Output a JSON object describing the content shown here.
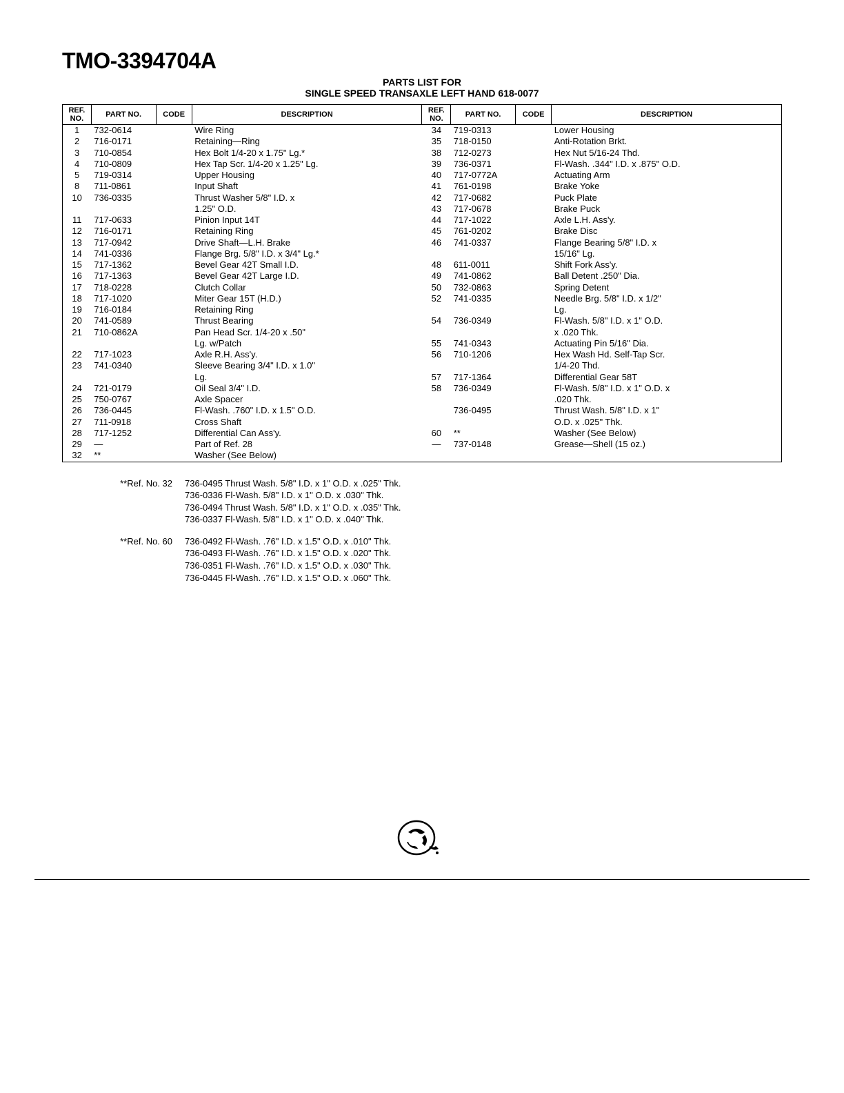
{
  "model": "TMO-3394704A",
  "subtitle_line1": "PARTS LIST FOR",
  "subtitle_line2": "SINGLE SPEED TRANSAXLE LEFT HAND 618-0077",
  "headers": {
    "ref": "REF.\nNO.",
    "part": "PART\nNO.",
    "code": "CODE",
    "desc": "DESCRIPTION"
  },
  "rows_left": [
    {
      "ref": "1",
      "part": "732-0614",
      "desc": "Wire Ring"
    },
    {
      "ref": "2",
      "part": "716-0171",
      "desc": "Retaining—Ring"
    },
    {
      "ref": "3",
      "part": "710-0854",
      "desc": "Hex Bolt 1/4-20 x 1.75\" Lg.*"
    },
    {
      "ref": "4",
      "part": "710-0809",
      "desc": "Hex Tap Scr. 1/4-20 x 1.25\" Lg."
    },
    {
      "ref": "5",
      "part": "719-0314",
      "desc": "Upper Housing"
    },
    {
      "ref": "8",
      "part": "711-0861",
      "desc": "Input Shaft"
    },
    {
      "ref": "10",
      "part": "736-0335",
      "desc": "Thrust Washer 5/8\" I.D. x"
    },
    {
      "ref": "",
      "part": "",
      "desc": "1.25\" O.D."
    },
    {
      "ref": "11",
      "part": "717-0633",
      "desc": "Pinion Input 14T"
    },
    {
      "ref": "12",
      "part": "716-0171",
      "desc": "Retaining Ring"
    },
    {
      "ref": "13",
      "part": "717-0942",
      "desc": "Drive Shaft—L.H. Brake"
    },
    {
      "ref": "14",
      "part": "741-0336",
      "desc": "Flange Brg. 5/8\" I.D. x 3/4\" Lg.*"
    },
    {
      "ref": "15",
      "part": "717-1362",
      "desc": "Bevel Gear 42T Small I.D."
    },
    {
      "ref": "16",
      "part": "717-1363",
      "desc": "Bevel Gear 42T Large I.D."
    },
    {
      "ref": "17",
      "part": "718-0228",
      "desc": "Clutch Collar"
    },
    {
      "ref": "18",
      "part": "717-1020",
      "desc": "Miter Gear 15T (H.D.)"
    },
    {
      "ref": "19",
      "part": "716-0184",
      "desc": "Retaining Ring"
    },
    {
      "ref": "20",
      "part": "741-0589",
      "desc": "Thrust Bearing"
    },
    {
      "ref": "21",
      "part": "710-0862A",
      "desc": "Pan Head Scr. 1/4-20 x .50\""
    },
    {
      "ref": "",
      "part": "",
      "desc": "Lg. w/Patch"
    },
    {
      "ref": "22",
      "part": "717-1023",
      "desc": "Axle R.H. Ass'y."
    },
    {
      "ref": "23",
      "part": "741-0340",
      "desc": "Sleeve Bearing 3/4\" I.D. x 1.0\""
    },
    {
      "ref": "",
      "part": "",
      "desc": "Lg."
    },
    {
      "ref": "24",
      "part": "721-0179",
      "desc": "Oil Seal 3/4\" I.D."
    },
    {
      "ref": "25",
      "part": "750-0767",
      "desc": "Axle Spacer"
    },
    {
      "ref": "26",
      "part": "736-0445",
      "desc": "Fl-Wash. .760\" I.D. x 1.5\" O.D."
    },
    {
      "ref": "27",
      "part": "711-0918",
      "desc": "Cross Shaft"
    },
    {
      "ref": "28",
      "part": "717-1252",
      "desc": "Differential Can Ass'y."
    },
    {
      "ref": "29",
      "part": "—",
      "desc": "Part of Ref. 28"
    },
    {
      "ref": "32",
      "part": "**",
      "desc": "Washer (See Below)"
    }
  ],
  "rows_right": [
    {
      "ref": "34",
      "part": "719-0313",
      "desc": "Lower Housing"
    },
    {
      "ref": "35",
      "part": "718-0150",
      "desc": "Anti-Rotation Brkt."
    },
    {
      "ref": "38",
      "part": "712-0273",
      "desc": "Hex Nut 5/16-24 Thd."
    },
    {
      "ref": "39",
      "part": "736-0371",
      "desc": "Fl-Wash. .344\" I.D. x .875\" O.D."
    },
    {
      "ref": "40",
      "part": "717-0772A",
      "desc": "Actuating Arm"
    },
    {
      "ref": "41",
      "part": "761-0198",
      "desc": "Brake Yoke"
    },
    {
      "ref": "42",
      "part": "717-0682",
      "desc": "Puck Plate"
    },
    {
      "ref": "43",
      "part": "717-0678",
      "desc": "Brake Puck"
    },
    {
      "ref": "44",
      "part": "717-1022",
      "desc": "Axle L.H. Ass'y."
    },
    {
      "ref": "45",
      "part": "761-0202",
      "desc": "Brake Disc"
    },
    {
      "ref": "46",
      "part": "741-0337",
      "desc": "Flange Bearing 5/8\" I.D. x"
    },
    {
      "ref": "",
      "part": "",
      "desc": "15/16\" Lg."
    },
    {
      "ref": "48",
      "part": "611-0011",
      "desc": "Shift Fork Ass'y."
    },
    {
      "ref": "49",
      "part": "741-0862",
      "desc": "Ball Detent .250\" Dia."
    },
    {
      "ref": "50",
      "part": "732-0863",
      "desc": "Spring Detent"
    },
    {
      "ref": "52",
      "part": "741-0335",
      "desc": "Needle Brg. 5/8\" I.D. x 1/2\""
    },
    {
      "ref": "",
      "part": "",
      "desc": "Lg."
    },
    {
      "ref": "54",
      "part": "736-0349",
      "desc": "Fl-Wash. 5/8\" I.D. x 1\" O.D."
    },
    {
      "ref": "",
      "part": "",
      "desc": "x .020 Thk."
    },
    {
      "ref": "55",
      "part": "741-0343",
      "desc": "Actuating Pin 5/16\" Dia."
    },
    {
      "ref": "56",
      "part": "710-1206",
      "desc": "Hex Wash Hd. Self-Tap Scr."
    },
    {
      "ref": "",
      "part": "",
      "desc": "1/4-20 Thd."
    },
    {
      "ref": "57",
      "part": "717-1364",
      "desc": "Differential Gear 58T"
    },
    {
      "ref": "58",
      "part": "736-0349",
      "desc": "Fl-Wash. 5/8\" I.D. x 1\" O.D. x"
    },
    {
      "ref": "",
      "part": "",
      "desc": ".020 Thk."
    },
    {
      "ref": "",
      "part": "736-0495",
      "desc": "Thrust Wash. 5/8\" I.D. x 1\""
    },
    {
      "ref": "",
      "part": "",
      "desc": "O.D. x .025\" Thk."
    },
    {
      "ref": "60",
      "part": "**",
      "desc": "Washer (See Below)"
    },
    {
      "ref": "—",
      "part": "737-0148",
      "desc": "Grease—Shell (15 oz.)"
    },
    {
      "ref": "",
      "part": "",
      "desc": ""
    }
  ],
  "footnotes": [
    {
      "label": "**Ref. No. 32",
      "lines": [
        "736-0495 Thrust Wash. 5/8\" I.D. x 1\" O.D. x .025\" Thk.",
        "736-0336 Fl-Wash. 5/8\" I.D. x 1\" O.D. x .030\" Thk.",
        "736-0494 Thrust Wash. 5/8\" I.D. x 1\" O.D. x .035\" Thk.",
        "736-0337 Fl-Wash. 5/8\" I.D. x 1\" O.D. x .040\" Thk."
      ]
    },
    {
      "label": "**Ref. No. 60",
      "lines": [
        "736-0492 Fl-Wash. .76\" I.D. x 1.5\" O.D. x .010\" Thk.",
        "736-0493 Fl-Wash. .76\" I.D. x 1.5\" O.D. x .020\" Thk.",
        "736-0351 Fl-Wash. .76\" I.D. x 1.5\" O.D. x .030\" Thk.",
        "736-0445 Fl-Wash. .76\" I.D. x 1.5\" O.D. x .060\" Thk."
      ]
    }
  ]
}
